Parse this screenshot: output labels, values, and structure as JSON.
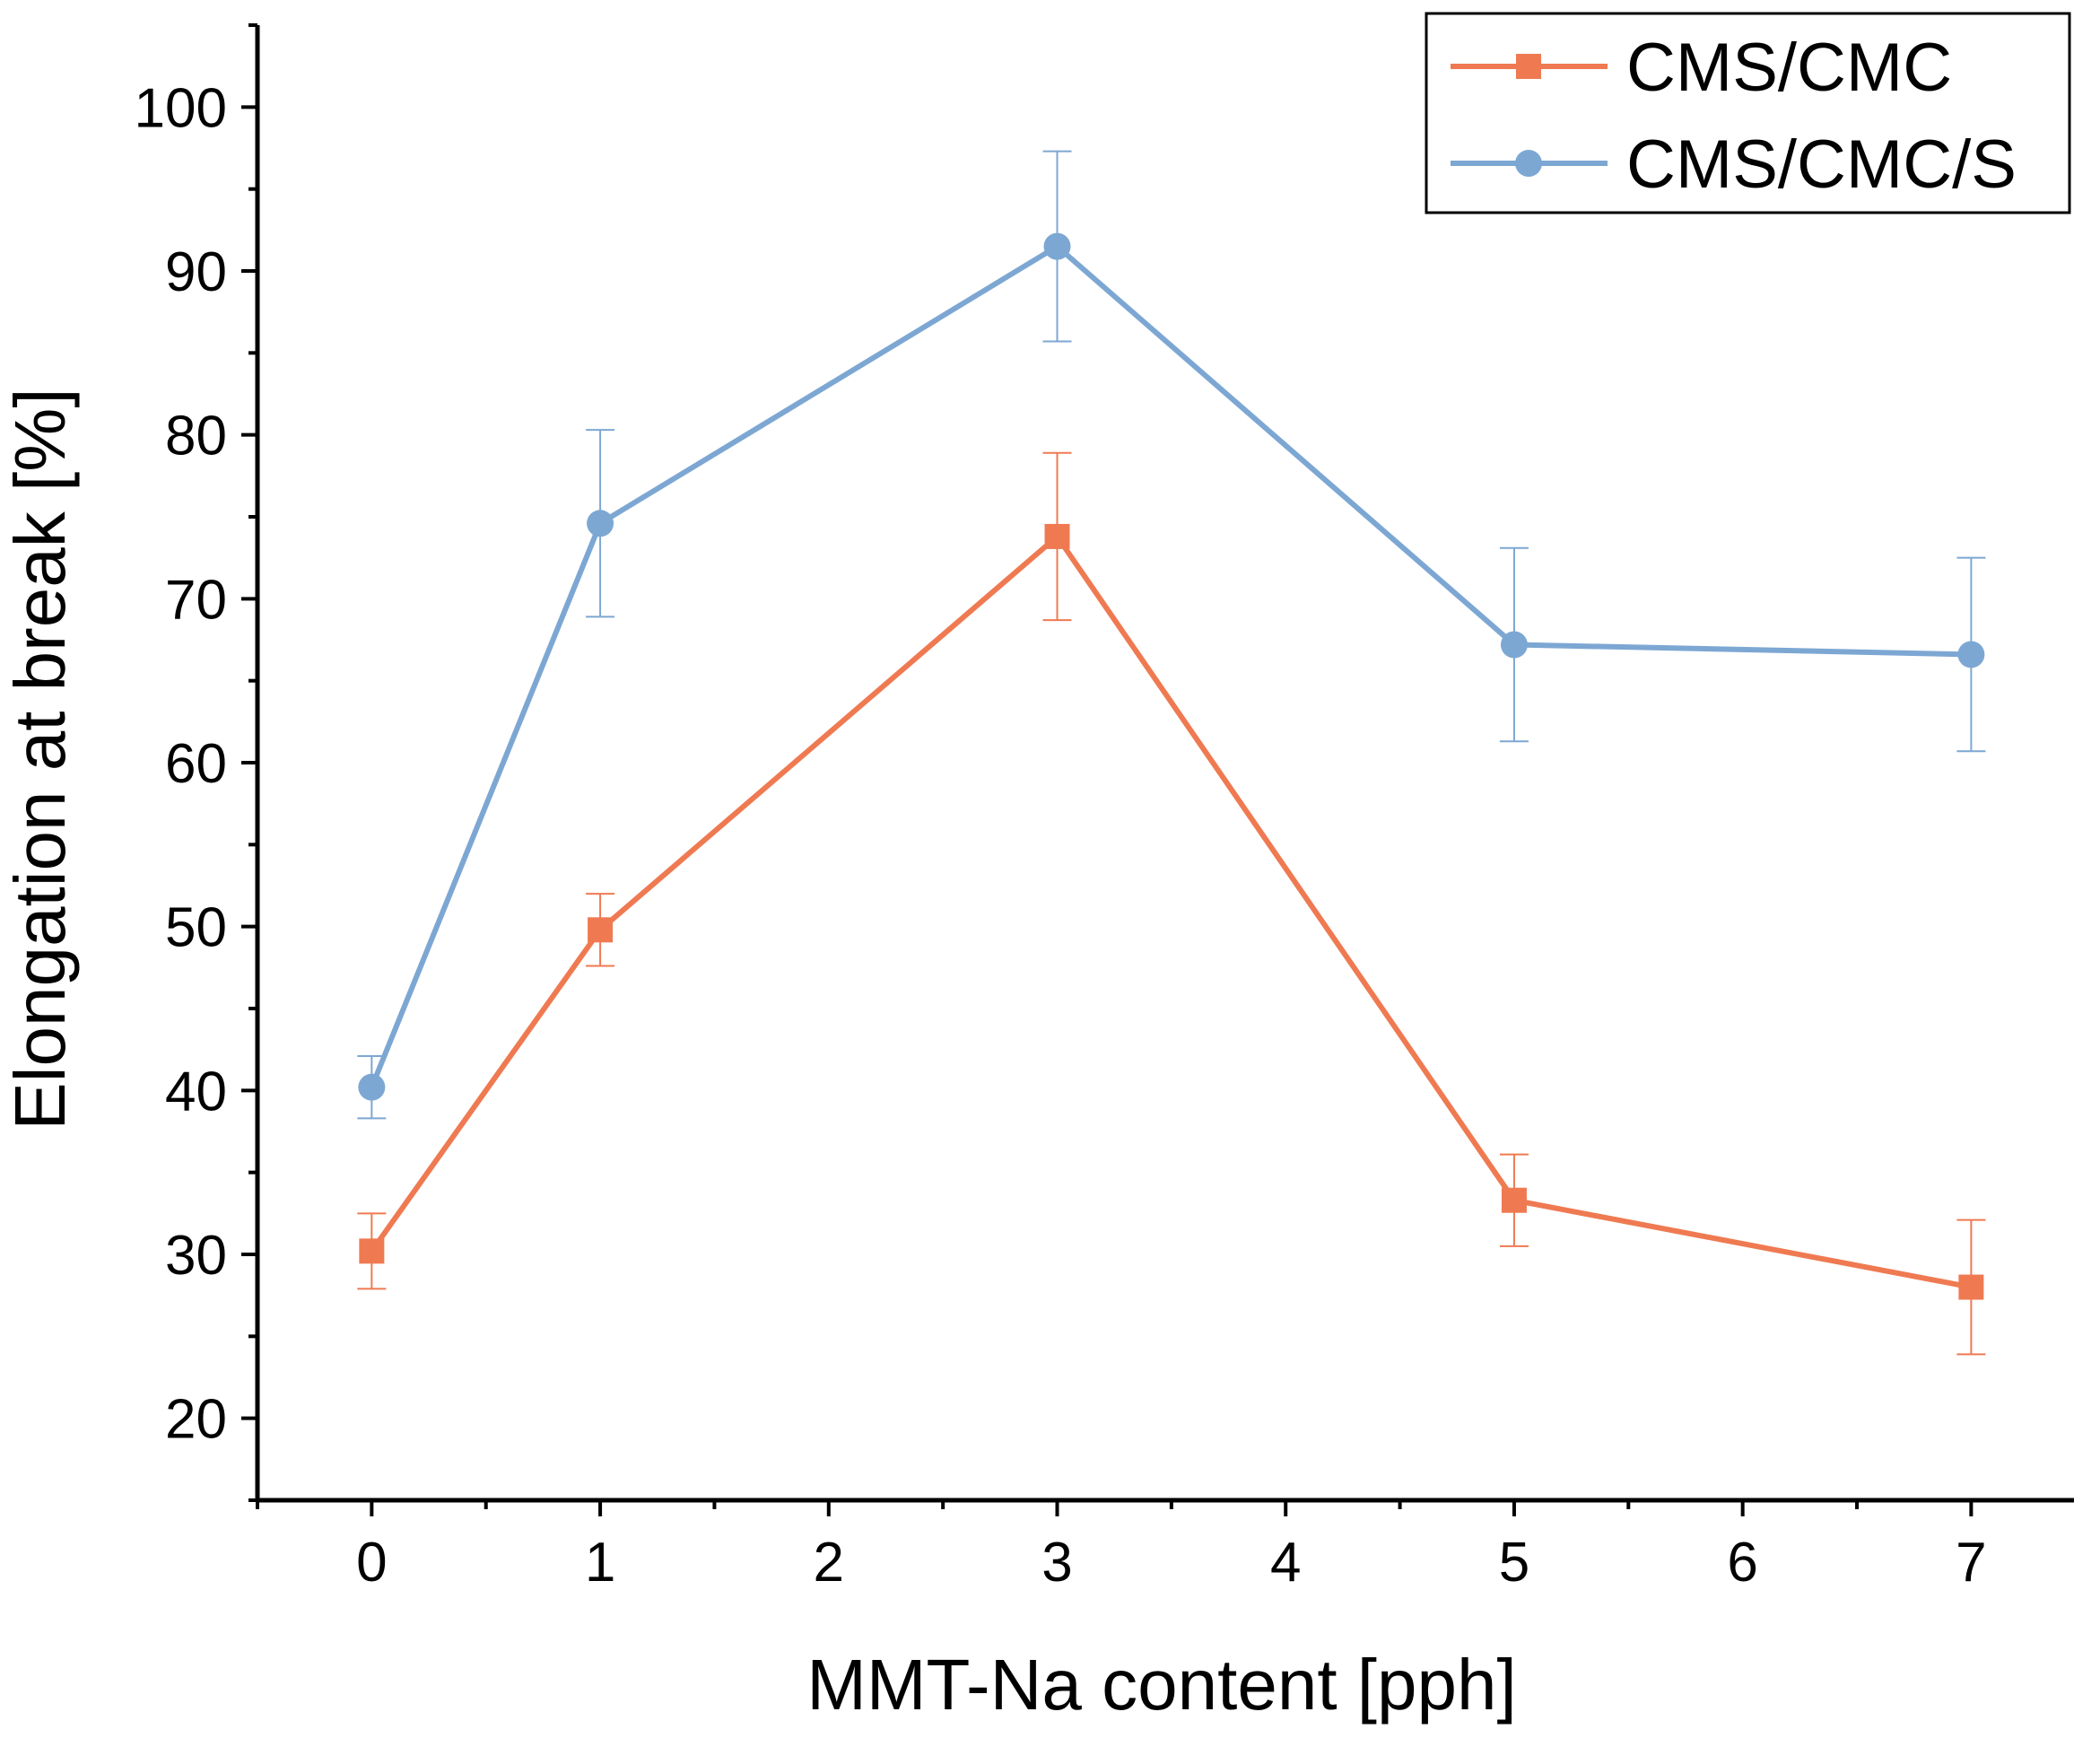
{
  "chart_data": {
    "type": "line",
    "title": "",
    "xlabel": "MMT-Na content [pph]",
    "ylabel": "Elongation at break [%]",
    "xlim": [
      -0.5,
      7.45
    ],
    "ylim": [
      15,
      105
    ],
    "x_ticks": [
      0,
      1,
      2,
      3,
      4,
      5,
      6,
      7
    ],
    "y_ticks": [
      20,
      30,
      40,
      50,
      60,
      70,
      80,
      90,
      100
    ],
    "x_tick_labels": [
      "0",
      "1",
      "2",
      "3",
      "4",
      "5",
      "6",
      "7"
    ],
    "y_tick_labels": [
      "20",
      "30",
      "40",
      "50",
      "60",
      "70",
      "80",
      "90",
      "100"
    ],
    "grid": false,
    "legend_position": "top-right",
    "series": [
      {
        "name": "CMS/CMC",
        "color": "#ef7a52",
        "marker": "square",
        "x": [
          0,
          1,
          3,
          5,
          7
        ],
        "values": [
          30.2,
          49.8,
          73.8,
          33.3,
          28.0
        ],
        "errors": [
          2.3,
          2.2,
          5.1,
          2.8,
          4.1
        ]
      },
      {
        "name": "CMS/CMC/S",
        "color": "#7da7d3",
        "marker": "circle",
        "x": [
          0,
          1,
          3,
          5,
          7
        ],
        "values": [
          40.2,
          74.6,
          91.5,
          67.2,
          66.6
        ],
        "errors": [
          1.9,
          5.7,
          5.8,
          5.9,
          5.9
        ]
      }
    ]
  }
}
